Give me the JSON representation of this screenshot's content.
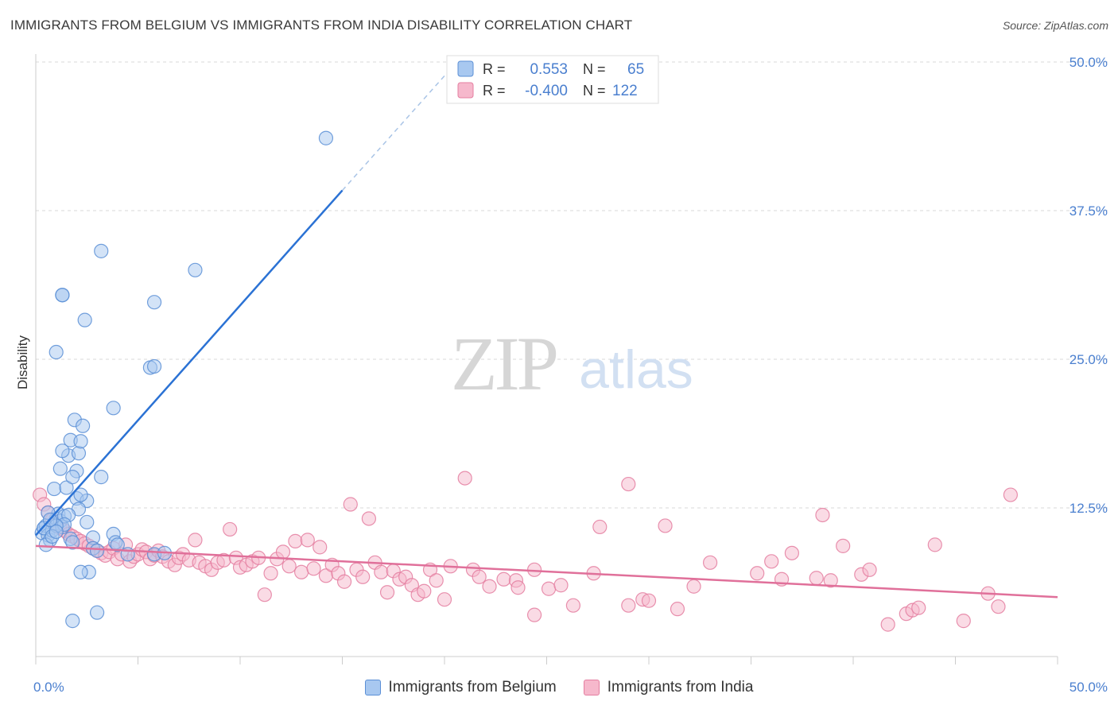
{
  "title": "IMMIGRANTS FROM BELGIUM VS IMMIGRANTS FROM INDIA DISABILITY CORRELATION CHART",
  "source": "Source: ZipAtlas.com",
  "watermark": {
    "zip": "ZIP",
    "atlas": "atlas"
  },
  "colors": {
    "belgium_fill": "#a8c8f0",
    "belgium_stroke": "#5b8fd6",
    "belgium_line": "#2b72d4",
    "india_fill": "#f6b8cc",
    "india_stroke": "#e47ea0",
    "india_line": "#e0709a",
    "axis_text": "#4a7fcf",
    "grid": "#d8d8d8"
  },
  "legend": {
    "rows": [
      {
        "r_label": "R =",
        "r_value": "0.553",
        "n_label": "N =",
        "n_value": "65"
      },
      {
        "r_label": "R =",
        "r_value": "-0.400",
        "n_label": "N =",
        "n_value": "122"
      }
    ]
  },
  "chart_data": {
    "type": "scatter",
    "title": "IMMIGRANTS FROM BELGIUM VS IMMIGRANTS FROM INDIA DISABILITY CORRELATION CHART",
    "xlabel": "",
    "ylabel": "Disability",
    "xlim": [
      0,
      50
    ],
    "ylim": [
      0,
      50
    ],
    "x_tick_labels": [
      "0.0%",
      "50.0%"
    ],
    "y_ticks": [
      12.5,
      25.0,
      37.5,
      50.0
    ],
    "y_tick_labels": [
      "12.5%",
      "25.0%",
      "37.5%",
      "50.0%"
    ],
    "grid": true,
    "legend_position": "top-center",
    "series": [
      {
        "name": "Immigrants from Belgium",
        "r": 0.553,
        "n": 65,
        "trend": {
          "x0": 0.0,
          "y0": 10.2,
          "x1": 15.0,
          "y1": 39.2,
          "dash_x1": 20.5,
          "dash_y1": 49.8
        },
        "points": [
          [
            0.3,
            10.4
          ],
          [
            0.4,
            10.8
          ],
          [
            0.5,
            11.0
          ],
          [
            0.6,
            10.2
          ],
          [
            0.7,
            9.8
          ],
          [
            0.5,
            9.4
          ],
          [
            0.8,
            10.6
          ],
          [
            0.9,
            11.2
          ],
          [
            1.0,
            11.6
          ],
          [
            1.1,
            12.0
          ],
          [
            1.2,
            11.4
          ],
          [
            1.3,
            10.9
          ],
          [
            1.4,
            11.8
          ],
          [
            0.6,
            12.1
          ],
          [
            0.9,
            14.1
          ],
          [
            1.2,
            15.8
          ],
          [
            1.5,
            14.2
          ],
          [
            1.6,
            16.9
          ],
          [
            1.3,
            17.3
          ],
          [
            1.7,
            18.2
          ],
          [
            2.0,
            15.6
          ],
          [
            1.9,
            19.9
          ],
          [
            2.1,
            17.1
          ],
          [
            2.2,
            18.1
          ],
          [
            2.3,
            19.4
          ],
          [
            1.8,
            15.1
          ],
          [
            2.0,
            13.3
          ],
          [
            2.5,
            13.1
          ],
          [
            2.8,
            10.0
          ],
          [
            3.2,
            15.1
          ],
          [
            3.8,
            20.9
          ],
          [
            3.8,
            10.3
          ],
          [
            3.9,
            9.6
          ],
          [
            4.0,
            9.4
          ],
          [
            4.5,
            8.6
          ],
          [
            5.8,
            8.6
          ],
          [
            6.3,
            8.7
          ],
          [
            5.6,
            24.3
          ],
          [
            5.8,
            24.4
          ],
          [
            5.8,
            29.8
          ],
          [
            7.8,
            32.5
          ],
          [
            3.2,
            34.1
          ],
          [
            2.4,
            28.3
          ],
          [
            1.3,
            30.4
          ],
          [
            1.3,
            30.4
          ],
          [
            1.0,
            25.6
          ],
          [
            2.2,
            13.6
          ],
          [
            2.5,
            11.3
          ],
          [
            2.1,
            12.4
          ],
          [
            1.6,
            11.9
          ],
          [
            1.4,
            11.1
          ],
          [
            1.0,
            11.0
          ],
          [
            0.4,
            10.8
          ],
          [
            0.8,
            10.1
          ],
          [
            1.7,
            9.9
          ],
          [
            1.8,
            9.6
          ],
          [
            2.8,
            9.1
          ],
          [
            3.0,
            8.9
          ],
          [
            2.6,
            7.1
          ],
          [
            2.2,
            7.1
          ],
          [
            1.8,
            3.0
          ],
          [
            3.0,
            3.7
          ],
          [
            14.2,
            43.6
          ],
          [
            1.0,
            10.5
          ],
          [
            0.7,
            11.5
          ]
        ]
      },
      {
        "name": "Immigrants from India",
        "r": -0.4,
        "n": 122,
        "trend": {
          "x0": 0.0,
          "y0": 9.3,
          "x1": 50.0,
          "y1": 5.0
        },
        "points": [
          [
            0.2,
            13.6
          ],
          [
            0.4,
            12.8
          ],
          [
            0.6,
            12.1
          ],
          [
            0.8,
            11.5
          ],
          [
            1.0,
            11.1
          ],
          [
            1.2,
            10.8
          ],
          [
            1.4,
            10.6
          ],
          [
            1.6,
            10.3
          ],
          [
            1.8,
            10.1
          ],
          [
            2.0,
            9.9
          ],
          [
            2.2,
            9.7
          ],
          [
            2.4,
            9.5
          ],
          [
            2.6,
            9.3
          ],
          [
            2.8,
            9.1
          ],
          [
            3.0,
            8.9
          ],
          [
            3.2,
            8.7
          ],
          [
            3.4,
            8.5
          ],
          [
            3.6,
            8.8
          ],
          [
            3.8,
            9.1
          ],
          [
            4.0,
            8.2
          ],
          [
            4.2,
            8.6
          ],
          [
            4.4,
            9.4
          ],
          [
            4.6,
            8.0
          ],
          [
            4.8,
            8.4
          ],
          [
            5.0,
            8.6
          ],
          [
            5.2,
            9.0
          ],
          [
            5.4,
            8.8
          ],
          [
            5.6,
            8.2
          ],
          [
            5.8,
            8.5
          ],
          [
            6.0,
            8.9
          ],
          [
            6.2,
            8.4
          ],
          [
            6.5,
            8.0
          ],
          [
            6.8,
            7.7
          ],
          [
            7.0,
            8.3
          ],
          [
            7.2,
            8.6
          ],
          [
            7.5,
            8.1
          ],
          [
            7.8,
            9.8
          ],
          [
            8.0,
            7.9
          ],
          [
            8.3,
            7.6
          ],
          [
            8.6,
            7.3
          ],
          [
            8.9,
            7.9
          ],
          [
            9.2,
            8.1
          ],
          [
            9.5,
            10.7
          ],
          [
            9.8,
            8.3
          ],
          [
            10.0,
            7.5
          ],
          [
            10.3,
            7.7
          ],
          [
            10.6,
            8.0
          ],
          [
            10.9,
            8.3
          ],
          [
            11.2,
            5.2
          ],
          [
            11.5,
            7.0
          ],
          [
            11.8,
            8.2
          ],
          [
            12.1,
            8.8
          ],
          [
            12.4,
            7.6
          ],
          [
            12.7,
            9.7
          ],
          [
            13.0,
            7.1
          ],
          [
            13.3,
            9.8
          ],
          [
            13.6,
            7.4
          ],
          [
            13.9,
            9.2
          ],
          [
            14.2,
            6.8
          ],
          [
            14.5,
            7.7
          ],
          [
            14.8,
            7.0
          ],
          [
            15.1,
            6.3
          ],
          [
            15.4,
            12.8
          ],
          [
            15.7,
            7.3
          ],
          [
            16.0,
            6.7
          ],
          [
            16.3,
            11.6
          ],
          [
            16.6,
            7.9
          ],
          [
            16.9,
            7.1
          ],
          [
            17.2,
            5.4
          ],
          [
            17.5,
            7.2
          ],
          [
            17.8,
            6.5
          ],
          [
            18.1,
            6.7
          ],
          [
            18.4,
            6.0
          ],
          [
            18.7,
            5.2
          ],
          [
            19.0,
            5.5
          ],
          [
            19.3,
            7.3
          ],
          [
            19.6,
            6.4
          ],
          [
            20.0,
            4.8
          ],
          [
            20.3,
            7.6
          ],
          [
            21.0,
            15.0
          ],
          [
            21.4,
            7.3
          ],
          [
            21.7,
            6.7
          ],
          [
            22.2,
            5.9
          ],
          [
            22.9,
            6.5
          ],
          [
            23.5,
            6.4
          ],
          [
            23.6,
            5.8
          ],
          [
            24.4,
            3.5
          ],
          [
            24.4,
            7.3
          ],
          [
            25.1,
            5.7
          ],
          [
            25.7,
            6.0
          ],
          [
            26.3,
            4.3
          ],
          [
            27.3,
            7.0
          ],
          [
            27.6,
            10.9
          ],
          [
            29.0,
            4.3
          ],
          [
            29.0,
            14.5
          ],
          [
            29.7,
            4.8
          ],
          [
            30.0,
            4.7
          ],
          [
            30.8,
            11.0
          ],
          [
            31.4,
            4.0
          ],
          [
            32.2,
            5.9
          ],
          [
            33.0,
            7.9
          ],
          [
            35.3,
            7.0
          ],
          [
            36.0,
            8.0
          ],
          [
            36.5,
            6.5
          ],
          [
            37.0,
            8.7
          ],
          [
            38.2,
            6.6
          ],
          [
            38.5,
            11.9
          ],
          [
            38.9,
            6.4
          ],
          [
            39.5,
            9.3
          ],
          [
            40.4,
            6.9
          ],
          [
            40.8,
            7.3
          ],
          [
            41.7,
            2.7
          ],
          [
            42.6,
            3.6
          ],
          [
            42.9,
            3.9
          ],
          [
            43.2,
            4.1
          ],
          [
            44.0,
            9.4
          ],
          [
            45.4,
            3.0
          ],
          [
            46.6,
            5.3
          ],
          [
            47.1,
            4.2
          ],
          [
            47.7,
            13.6
          ]
        ]
      }
    ]
  },
  "bottom_legend": [
    {
      "label": "Immigrants from Belgium"
    },
    {
      "label": "Immigrants from India"
    }
  ]
}
